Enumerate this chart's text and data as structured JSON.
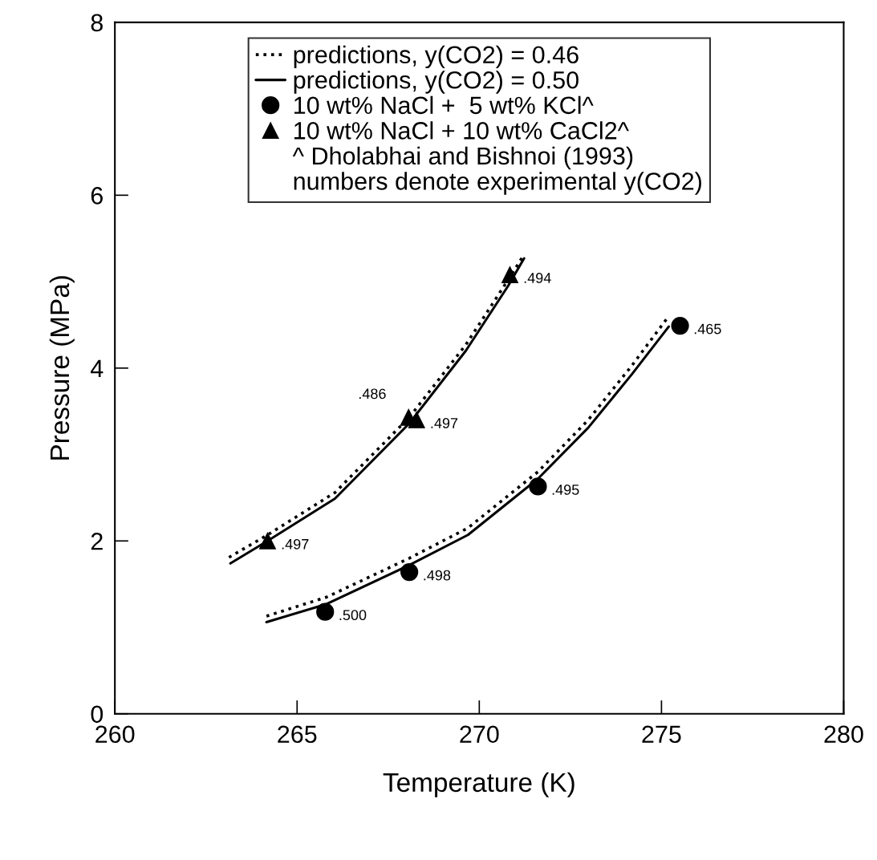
{
  "chart_data": {
    "type": "line",
    "xlabel": "Temperature (K)",
    "ylabel": "Pressure (MPa)",
    "xlim": [
      260,
      280
    ],
    "xticks": [
      260,
      265,
      270,
      275,
      280
    ],
    "ylim": [
      0,
      8
    ],
    "yticks": [
      0,
      2,
      4,
      6,
      8
    ],
    "grid": false,
    "legend": "top",
    "series": [
      {
        "name": "predictions, y(CO2) = 0.46",
        "color": "#000000",
        "line_style": "dotted",
        "marker": "none",
        "x": [
          264.16,
          265.81,
          268.08,
          269.69,
          271.61,
          272.99,
          274.19,
          275.18
        ],
        "values": [
          1.13,
          1.35,
          1.8,
          2.15,
          2.8,
          3.4,
          4.03,
          4.59
        ]
      },
      {
        "name": "predictions, y(CO2) = 0.50",
        "color": "#000000",
        "line_style": "solid",
        "marker": "none",
        "x": [
          264.16,
          265.81,
          268.08,
          269.69,
          271.61,
          272.99,
          274.19,
          275.2
        ],
        "values": [
          1.06,
          1.27,
          1.72,
          2.07,
          2.72,
          3.31,
          3.93,
          4.48
        ]
      },
      {
        "color": "#000000",
        "line_style": "dotted",
        "marker": "none",
        "x": [
          263.13,
          264.19,
          266.04,
          268.08,
          269.63,
          270.79,
          271.21
        ],
        "values": [
          1.81,
          2.07,
          2.56,
          3.43,
          4.27,
          5.02,
          5.3
        ]
      },
      {
        "color": "#000000",
        "line_style": "solid",
        "marker": "none",
        "x": [
          263.17,
          264.19,
          266.04,
          268.08,
          269.63,
          270.79,
          271.23
        ],
        "values": [
          1.74,
          2.0,
          2.49,
          3.36,
          4.2,
          4.95,
          5.27
        ]
      },
      {
        "name": "10 wt% NaCl +  5 wt% KCl^",
        "color": "#000000",
        "type": "scatter",
        "marker": "circle",
        "x": [
          265.77,
          268.08,
          271.61,
          275.51
        ],
        "values": [
          1.18,
          1.64,
          2.63,
          4.49
        ]
      },
      {
        "name": "10 wt% NaCl + 10 wt% CaCl2^",
        "color": "#000000",
        "type": "scatter",
        "marker": "triangle",
        "x": [
          264.19,
          268.06,
          268.28,
          270.84
        ],
        "values": [
          2.0,
          3.43,
          3.4,
          5.08
        ]
      }
    ],
    "annotations": [
      "^ Dholabhai and Bishnoi (1993)",
      "numbers denote experimental y(CO2)",
      {
        "text": ".500",
        "x": 265.77,
        "y": 1.18
      },
      {
        "text": ".498",
        "x": 268.08,
        "y": 1.64
      },
      {
        "text": ".495",
        "x": 271.61,
        "y": 2.63
      },
      {
        "text": ".465",
        "x": 275.51,
        "y": 4.49
      },
      {
        "text": ".497",
        "x": 264.19,
        "y": 2.0
      },
      {
        "text": ".486",
        "x": 268.06,
        "y": 3.43
      },
      {
        "text": ".497",
        "x": 268.28,
        "y": 3.4
      },
      {
        "text": ".494",
        "x": 270.84,
        "y": 5.08
      }
    ]
  }
}
